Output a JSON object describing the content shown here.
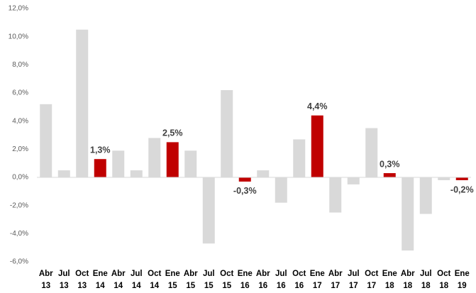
{
  "chart_data": {
    "type": "bar",
    "categories": [
      "Abr 13",
      "Jul 13",
      "Oct 13",
      "Ene 14",
      "Abr 14",
      "Jul 14",
      "Oct 14",
      "Ene 15",
      "Abr 15",
      "Jul 15",
      "Oct 15",
      "Ene 16",
      "Abr 16",
      "Jul 16",
      "Oct 16",
      "Ene 17",
      "Abr 17",
      "Jul 17",
      "Oct 17",
      "Ene 18",
      "Abr 18",
      "Jul 18",
      "Oct 18",
      "Ene 19"
    ],
    "values": [
      5.2,
      0.5,
      10.5,
      1.3,
      1.9,
      0.5,
      2.8,
      2.5,
      1.9,
      -4.7,
      6.2,
      -0.3,
      0.5,
      -1.8,
      2.7,
      4.4,
      -2.5,
      -0.5,
      3.5,
      0.3,
      -5.2,
      -2.6,
      -0.2,
      -0.2
    ],
    "value_labels": [
      null,
      null,
      null,
      "1,3%",
      null,
      null,
      null,
      "2,5%",
      null,
      null,
      null,
      "-0,3%",
      null,
      null,
      null,
      "4,4%",
      null,
      null,
      null,
      "0,3%",
      null,
      null,
      null,
      "-0,2%"
    ],
    "colors": [
      "#d9d9d9",
      "#d9d9d9",
      "#d9d9d9",
      "#c00000",
      "#d9d9d9",
      "#d9d9d9",
      "#d9d9d9",
      "#c00000",
      "#d9d9d9",
      "#d9d9d9",
      "#d9d9d9",
      "#c00000",
      "#d9d9d9",
      "#d9d9d9",
      "#d9d9d9",
      "#c00000",
      "#d9d9d9",
      "#d9d9d9",
      "#d9d9d9",
      "#c00000",
      "#d9d9d9",
      "#d9d9d9",
      "#d9d9d9",
      "#c00000"
    ],
    "ylim": [
      -6,
      12
    ],
    "yticks": [
      {
        "value": -6,
        "label": "-6,0%"
      },
      {
        "value": -4,
        "label": "-4,0%"
      },
      {
        "value": -2,
        "label": "-2,0%"
      },
      {
        "value": 0,
        "label": "0,0%"
      },
      {
        "value": 2,
        "label": "2,0%"
      },
      {
        "value": 4,
        "label": "4,0%"
      },
      {
        "value": 6,
        "label": "6,0%"
      },
      {
        "value": 8,
        "label": "8,0%"
      },
      {
        "value": 10,
        "label": "10,0%"
      },
      {
        "value": 12,
        "label": "12,0%"
      }
    ],
    "grid": false
  }
}
